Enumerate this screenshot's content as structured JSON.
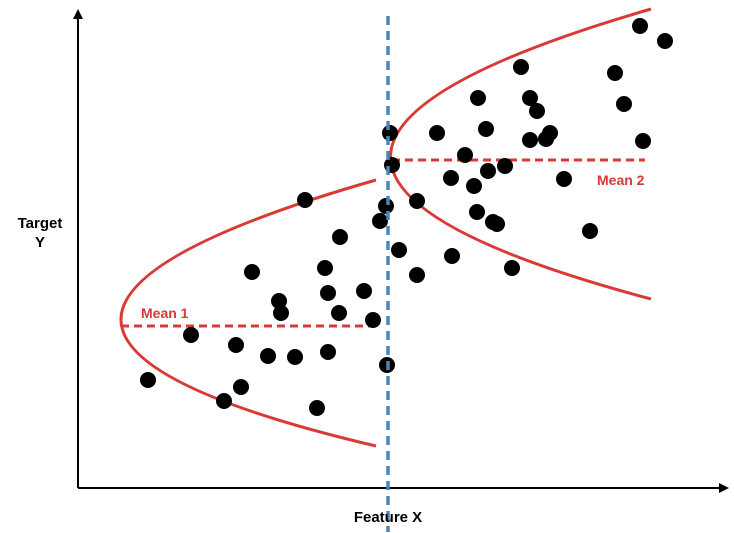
{
  "labels": {
    "x_axis": "Feature X",
    "y_axis_line1": "Target",
    "y_axis_line2": "Y",
    "mean_1": "Mean 1",
    "mean_2": "Mean 2"
  },
  "colors": {
    "axes": "#000000",
    "points": "#000000",
    "parabolas": "#d93a36",
    "mean_lines": "#d93a36",
    "mean_labels": "#d93a36",
    "split_line": "#4a86b8"
  }
}
